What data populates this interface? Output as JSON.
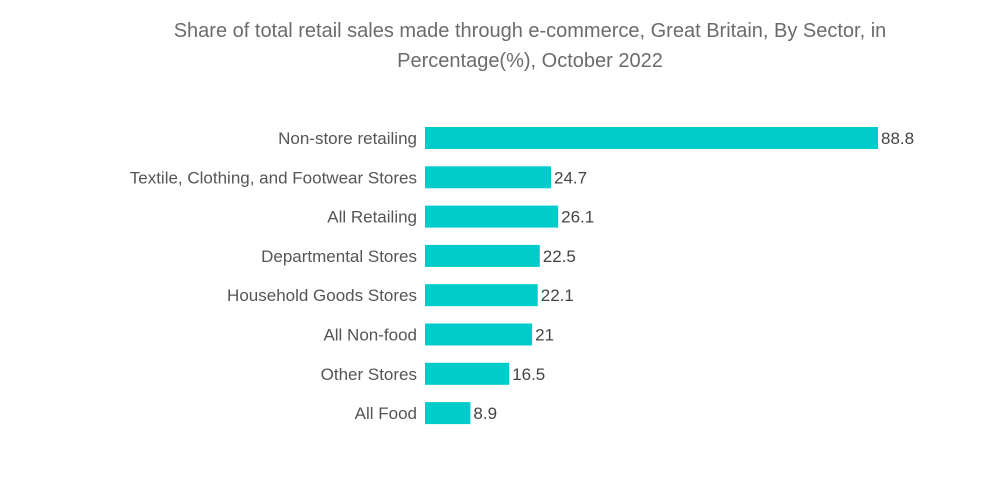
{
  "chart_data": {
    "type": "bar",
    "orientation": "horizontal",
    "title_line1": "Share of total retail sales made through e-commerce, Great Britain, By Sector, in",
    "title_line2": "Percentage(%), October 2022",
    "categories": [
      "Non-store retailing",
      "Textile, Clothing, and Footwear Stores",
      "All Retailing",
      "Departmental Stores",
      "Household Goods Stores",
      "All Non-food",
      "Other Stores",
      "All Food"
    ],
    "values": [
      88.8,
      24.7,
      26.1,
      22.5,
      22.1,
      21,
      16.5,
      8.9
    ],
    "value_labels": [
      "88.8",
      "24.7",
      "26.1",
      "22.5",
      "22.1",
      "21",
      "16.5",
      "8.9"
    ],
    "xlim": [
      0,
      88.8
    ],
    "grid": false,
    "legend": "none",
    "bar_color": "#00cccc"
  }
}
